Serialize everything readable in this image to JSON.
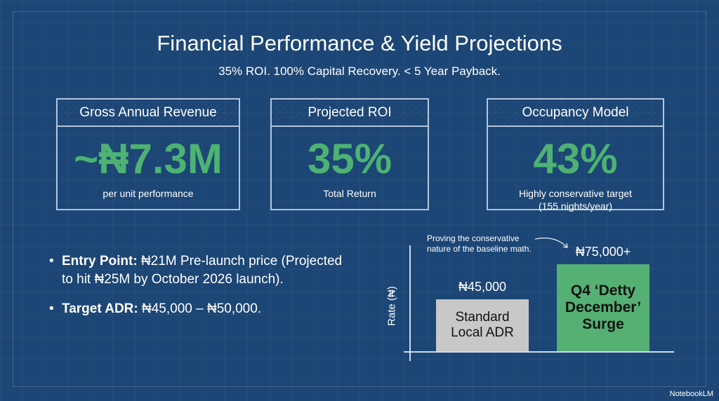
{
  "title": "Financial Performance & Yield Projections",
  "subtitle": "35% ROI. 100% Capital Recovery. < 5 Year Payback.",
  "cards": [
    {
      "heading": "Gross Annual Revenue",
      "value": "~₦7.3M",
      "caption": "per unit performance"
    },
    {
      "heading": "Projected ROI",
      "value": "35%",
      "caption": "Total Return"
    },
    {
      "heading": "Occupancy Model",
      "value": "43%",
      "caption": "Highly conservative target",
      "caption2": "(155 nights/year)"
    }
  ],
  "bullets": [
    {
      "label": "Entry Point:",
      "text": " ₦21M Pre-launch price (Projected to hit ₦25M by October 2026 launch)."
    },
    {
      "label": "Target ADR:",
      "text": " ₦45,000 – ₦50,000."
    }
  ],
  "chart_data": {
    "type": "bar",
    "ylabel": "Rate (₦)",
    "annotation": "Proving the conservative nature of the baseline math.",
    "categories": [
      "Standard Local ADR",
      "Q4 ‘Detty December’ Surge"
    ],
    "values": [
      45000,
      75000
    ],
    "value_labels": [
      "₦45,000",
      "₦75,000+"
    ],
    "colors": [
      "#c8c8c8",
      "#55b074"
    ]
  },
  "brand": "NotebookLM"
}
